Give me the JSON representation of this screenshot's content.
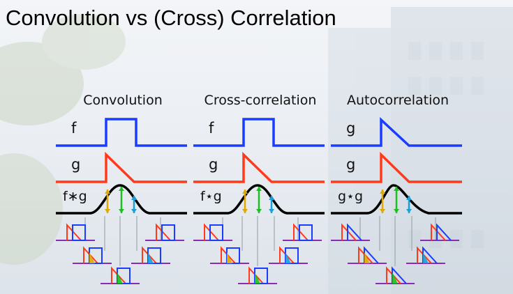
{
  "slide": {
    "title": "Convolution vs (Cross) Correlation"
  },
  "panels": [
    {
      "heading": "Convolution",
      "f_label": "f",
      "g_label": "g",
      "result_label": "f∗g"
    },
    {
      "heading": "Cross-correlation",
      "f_label": "f",
      "g_label": "g",
      "result_label": "f⋆g"
    },
    {
      "heading": "Autocorrelation",
      "f_label": "g",
      "g_label": "g",
      "result_label": "g⋆g"
    }
  ],
  "colors": {
    "signal_f": "#1a3cff",
    "signal_g": "#ff3a1a",
    "result": "#000000",
    "baseline": "#8a2bb5",
    "arrow_left": "#e0a800",
    "arrow_mid": "#1fbf1f",
    "arrow_right": "#1aa0d8",
    "overlap_fill_left": "#e0a800",
    "overlap_fill_mid": "#1fbf1f",
    "overlap_fill_right": "#1aa0d8"
  }
}
